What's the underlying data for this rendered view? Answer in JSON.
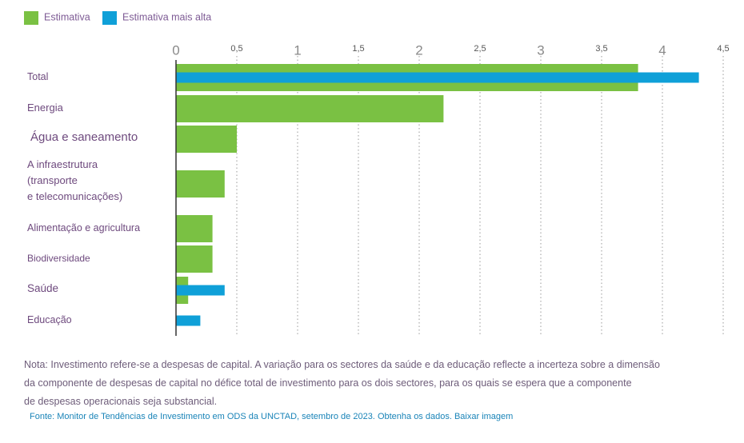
{
  "chart_data": {
    "type": "bar",
    "orientation": "horizontal",
    "categories": [
      "Total",
      "Energia",
      "Água e saneamento",
      "A infraestrutura\n(transporte\ne telecomunicações)",
      "Alimentação e agricultura",
      "Biodiversidade",
      "Saúde",
      "Educação"
    ],
    "series": [
      {
        "name": "Estimativa",
        "color": "#7ac143",
        "values": [
          3.8,
          2.2,
          0.5,
          0.4,
          0.3,
          0.3,
          0.1,
          null
        ]
      },
      {
        "name": "Estimativa mais alta",
        "color": "#0fa0d8",
        "values": [
          4.3,
          null,
          null,
          null,
          null,
          null,
          0.4,
          0.2
        ]
      }
    ],
    "xlim": [
      0,
      4.5
    ],
    "xticks": [
      0,
      {
        "value": 0.5,
        "label": "0,5"
      },
      1,
      {
        "value": 1.5,
        "label": "1,5"
      },
      2,
      {
        "value": 2.5,
        "label": "2,5"
      },
      3,
      {
        "value": 3.5,
        "label": "3,5"
      },
      4,
      {
        "value": 4.5,
        "label": "4,5"
      }
    ],
    "grid": true,
    "legend": "top-left",
    "note": [
      "Nota: Investimento refere-se a despesas de capital. A variação para os sectores da saúde e da educação reflecte a incerteza sobre a dimensão",
      "da componente de despesas de capital no défice total de investimento para os dois sectores, para os quais se espera que a componente",
      "de despesas operacionais seja substancial."
    ],
    "source": "Fonte: Monitor de Tendências de Investimento em ODS da UNCTAD, setembro de 2023.",
    "links": [
      "Obtenha os dados.",
      "Baixar imagem"
    ]
  }
}
